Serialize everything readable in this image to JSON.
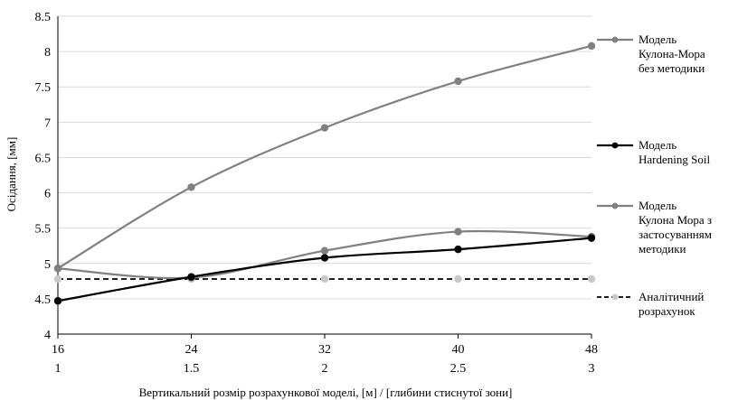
{
  "chart_data": {
    "type": "line",
    "x": [
      16,
      24,
      32,
      40,
      48
    ],
    "x_secondary": [
      "1",
      "1.5",
      "2",
      "2.5",
      "3"
    ],
    "xlabel": "Вертикальний розмір розрахункової моделі, [м] / [глибини стиснутої зони]",
    "ylabel": "Осідання, [мм]",
    "ylim": [
      4,
      8.5
    ],
    "yticks": [
      "4",
      "4.5",
      "5",
      "5.5",
      "6",
      "6.5",
      "7",
      "7.5",
      "8",
      "8.5"
    ],
    "legend_position": "right",
    "series": [
      {
        "name": "Модель Кулона-Мора без методики",
        "legend_lines": [
          "Модель",
          "Кулона-Мора",
          "без методики"
        ],
        "values": [
          4.93,
          6.08,
          6.92,
          7.58,
          8.08
        ],
        "color": "#808080",
        "line_style": "solid",
        "marker": "circle"
      },
      {
        "name": "Модель Hardening Soil",
        "legend_lines": [
          "Модель",
          "Hardening  Soil"
        ],
        "values": [
          4.47,
          4.81,
          5.08,
          5.2,
          5.36
        ],
        "color": "#000000",
        "line_style": "solid",
        "marker": "circle"
      },
      {
        "name": "Модель Кулона Мора з застосуванням методики",
        "legend_lines": [
          "Модель",
          "Кулона Мора з",
          "застосуванням",
          "методики"
        ],
        "values": [
          4.93,
          4.8,
          5.18,
          5.45,
          5.38
        ],
        "color": "#808080",
        "line_style": "solid",
        "marker": "circle"
      },
      {
        "name": "Аналітичний розрахунок",
        "legend_lines": [
          "Аналітичний",
          "розрахунок"
        ],
        "values": [
          4.78,
          4.78,
          4.78,
          4.78,
          4.78
        ],
        "color": "#000000",
        "marker_color": "#c8c8c8",
        "line_style": "dashed",
        "marker": "circle"
      }
    ]
  }
}
